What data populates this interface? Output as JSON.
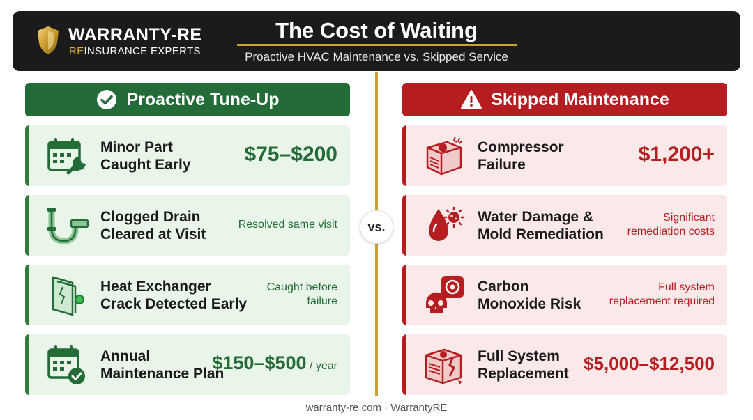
{
  "header": {
    "brand_name": "WARRANTY-RE",
    "brand_tag_accent": "RE",
    "brand_tag_rest": "INSURANCE EXPERTS",
    "title": "The Cost of Waiting",
    "subtitle": "Proactive HVAC Maintenance vs. Skipped Service"
  },
  "vs_label": "vs.",
  "left": {
    "heading": "Proactive Tune-Up",
    "heading_icon": "check-circle-icon",
    "items": [
      {
        "name": "Minor Part Caught Early",
        "line1": "Minor Part",
        "line2": "Caught Early",
        "value": "$75–$200",
        "icon": "calendar-wrench-icon"
      },
      {
        "name": "Clogged Drain Cleared at Visit",
        "line1": "Clogged Drain",
        "line2": "Cleared at Visit",
        "value": "Resolved same visit",
        "icon": "drain-pipe-icon"
      },
      {
        "name": "Heat Exchanger Crack Detected Early",
        "line1": "Heat Exchanger",
        "line2": "Crack Detected Early",
        "value_line1": "Caught before",
        "value_line2": "failure",
        "icon": "heat-exchanger-icon"
      },
      {
        "name": "Annual Maintenance Plan",
        "line1": "Annual",
        "line2": "Maintenance Plan",
        "value": "$150–$500",
        "unit": "/ year",
        "icon": "calendar-check-icon"
      }
    ]
  },
  "right": {
    "heading": "Skipped Maintenance",
    "heading_icon": "warning-triangle-icon",
    "items": [
      {
        "line1": "Compressor",
        "line2": "Failure",
        "value": "$1,200+",
        "icon": "broken-compressor-icon"
      },
      {
        "line1": "Water Damage &",
        "line2": "Mold Remediation",
        "value_line1": "Significant",
        "value_line2": "remediation costs",
        "icon": "water-mold-icon"
      },
      {
        "line1": "Carbon",
        "line2": "Monoxide Risk",
        "value_line1": "Full system",
        "value_line2": "replacement required",
        "icon": "co-detector-skull-icon"
      },
      {
        "line1": "Full System",
        "line2": "Replacement",
        "value": "$5,000–$12,500",
        "icon": "cracked-unit-icon"
      }
    ]
  },
  "footer": "warranty-re.com · WarrantyRE",
  "colors": {
    "header_bg": "#1b1b1b",
    "gold": "#c9a23b",
    "green": "#236b37",
    "green_card": "#eaf5ea",
    "red": "#b51d20",
    "red_card": "#fbe9e9"
  }
}
